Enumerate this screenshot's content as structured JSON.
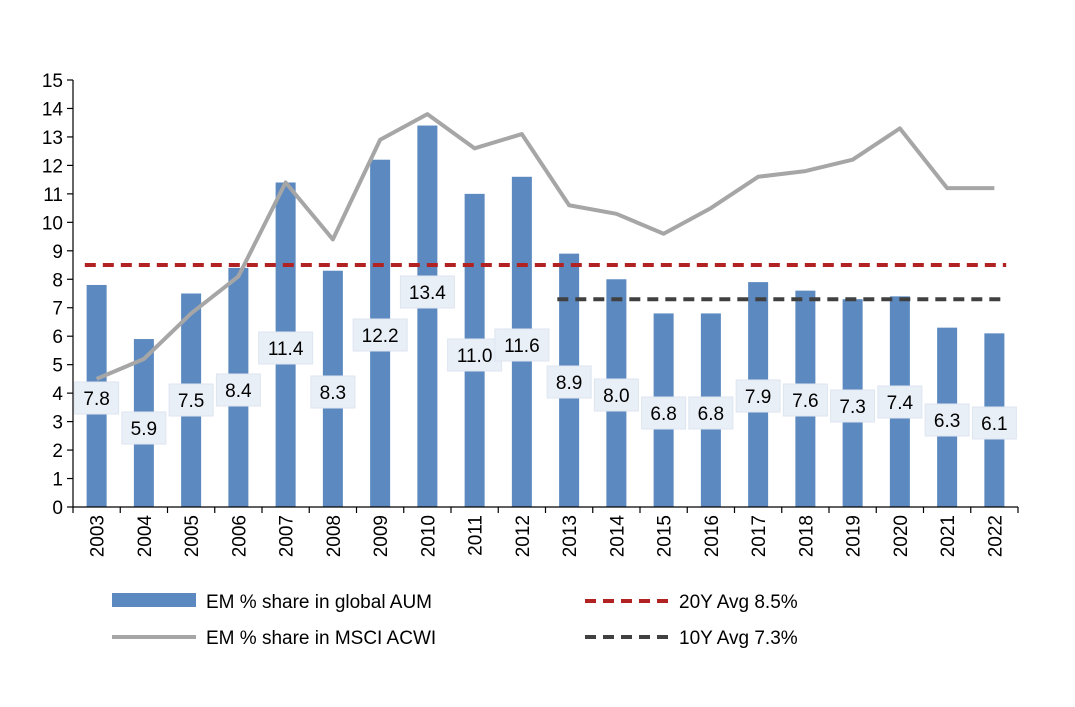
{
  "chart_data": {
    "type": "bar",
    "categories": [
      "2003",
      "2004",
      "2005",
      "2006",
      "2007",
      "2008",
      "2009",
      "2010",
      "2011",
      "2012",
      "2013",
      "2014",
      "2015",
      "2016",
      "2017",
      "2018",
      "2019",
      "2020",
      "2021",
      "2022"
    ],
    "series": [
      {
        "name": "EM % share in global AUM",
        "type": "bar",
        "color": "#5B89C0",
        "values": [
          7.8,
          5.9,
          7.5,
          8.4,
          11.4,
          8.3,
          12.2,
          13.4,
          11.0,
          11.6,
          8.9,
          8.0,
          6.8,
          6.8,
          7.9,
          7.6,
          7.3,
          7.4,
          6.3,
          6.1
        ],
        "data_labels": [
          "7.8",
          "5.9",
          "7.5",
          "8.4",
          "11.4",
          "8.3",
          "12.2",
          "13.4",
          "11.0",
          "11.6",
          "8.9",
          "8.0",
          "6.8",
          "6.8",
          "7.9",
          "7.6",
          "7.3",
          "7.4",
          "6.3",
          "6.1"
        ]
      },
      {
        "name": "EM % share in MSCI ACWI",
        "type": "line",
        "color": "#A6A6A6",
        "values": [
          4.5,
          5.2,
          6.8,
          8.1,
          11.4,
          9.4,
          12.9,
          13.8,
          12.6,
          13.1,
          10.6,
          10.3,
          9.6,
          10.5,
          11.6,
          11.8,
          12.2,
          13.3,
          11.2,
          11.2
        ]
      },
      {
        "name": "20Y Avg 8.5%",
        "type": "hline",
        "color": "#B22222",
        "value": 8.5,
        "from": "2003",
        "to": "2022"
      },
      {
        "name": "10Y Avg 7.3%",
        "type": "hline",
        "color": "#404040",
        "value": 7.3,
        "from": "2013",
        "to": "2022"
      }
    ],
    "y_ticks": [
      "0",
      "1",
      "2",
      "3",
      "4",
      "5",
      "6",
      "7",
      "8",
      "9",
      "10",
      "11",
      "12",
      "13",
      "14",
      "15"
    ],
    "ylim": [
      0,
      15
    ],
    "title": "",
    "xlabel": "",
    "ylabel": "",
    "grid": false,
    "legend_position": "bottom"
  }
}
